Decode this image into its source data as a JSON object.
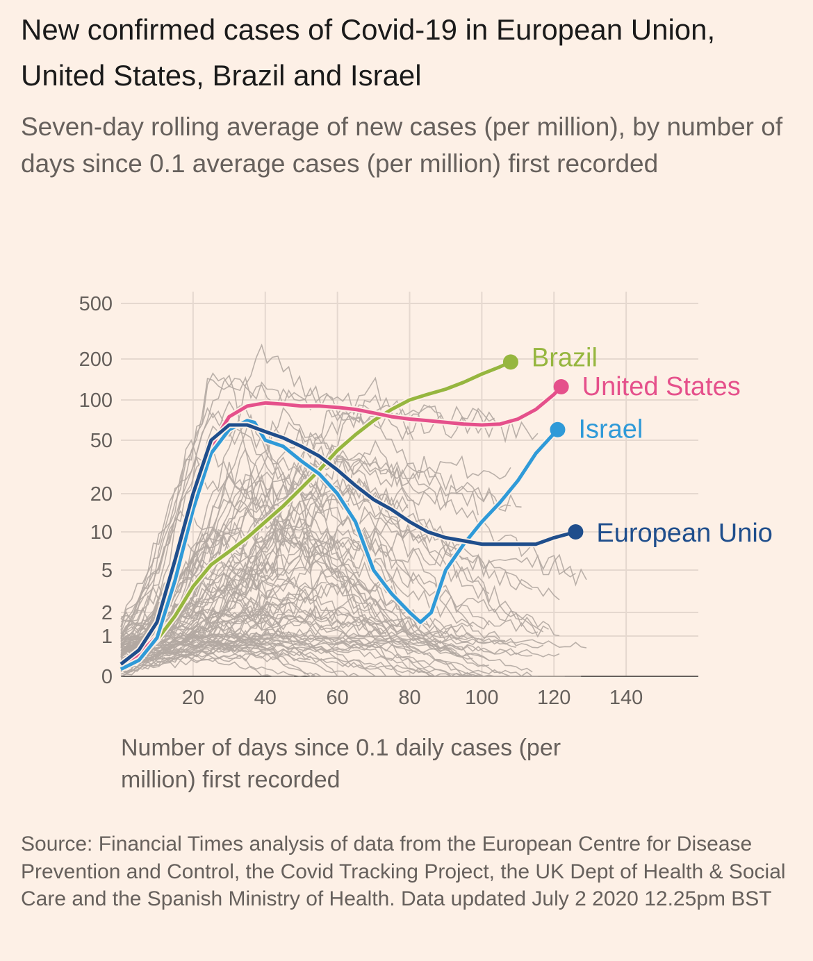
{
  "title": "New confirmed cases of Covid-19 in European Union, United States, Brazil and Israel",
  "subtitle": "Seven-day rolling average of new cases (per million), by number of days since 0.1 average cases (per million) first recorded",
  "source": "Source: Financial Times analysis of data from the European Centre for Disease Prevention and Control, the Covid Tracking Project, the UK Dept of Health & Social Care and the Spanish Ministry of Health. Data updated July 2 2020 12.25pm BST",
  "chart_data": {
    "type": "line",
    "title": "New confirmed cases of Covid-19 in European Union, United States, Brazil and Israel",
    "xlabel": "Number of days since 0.1 daily cases (per million) first recorded",
    "ylabel": "",
    "y_scale": "log",
    "xlim": [
      0,
      160
    ],
    "ylim": [
      0.1,
      700
    ],
    "x_ticks": [
      20,
      40,
      60,
      80,
      100,
      120,
      140
    ],
    "y_ticks": [
      {
        "value": 0.1,
        "label": "0"
      },
      {
        "value": 1,
        "label": "1"
      },
      {
        "value": 2,
        "label": "2"
      },
      {
        "value": 5,
        "label": "5"
      },
      {
        "value": 10,
        "label": "10"
      },
      {
        "value": 20,
        "label": "20"
      },
      {
        "value": 50,
        "label": "50"
      },
      {
        "value": 100,
        "label": "100"
      },
      {
        "value": 200,
        "label": "200"
      },
      {
        "value": 500,
        "label": "500"
      }
    ],
    "grid": true,
    "series": [
      {
        "name": "Brazil",
        "color": "#96b63f",
        "x": [
          0,
          5,
          10,
          15,
          20,
          25,
          30,
          35,
          40,
          45,
          50,
          55,
          60,
          65,
          70,
          75,
          80,
          85,
          90,
          95,
          100,
          105,
          108
        ],
        "y": [
          0.15,
          0.3,
          0.8,
          1.8,
          3.5,
          5.5,
          7,
          9,
          12,
          16,
          22,
          30,
          42,
          55,
          70,
          85,
          100,
          110,
          120,
          135,
          155,
          175,
          190
        ]
      },
      {
        "name": "United States",
        "color": "#e5508b",
        "x": [
          0,
          5,
          10,
          15,
          20,
          25,
          30,
          35,
          40,
          45,
          50,
          55,
          60,
          65,
          70,
          75,
          80,
          85,
          90,
          95,
          100,
          105,
          110,
          115,
          120,
          122
        ],
        "y": [
          0.2,
          0.35,
          1.0,
          4,
          15,
          45,
          75,
          90,
          95,
          93,
          90,
          90,
          88,
          85,
          80,
          75,
          72,
          70,
          68,
          66,
          65,
          66,
          72,
          85,
          110,
          125
        ]
      },
      {
        "name": "Israel",
        "color": "#2f9ad8",
        "x": [
          0,
          5,
          10,
          15,
          20,
          25,
          30,
          35,
          37,
          40,
          45,
          50,
          55,
          60,
          65,
          70,
          75,
          80,
          83,
          86,
          90,
          95,
          100,
          105,
          110,
          115,
          121
        ],
        "y": [
          0.15,
          0.25,
          0.9,
          4,
          15,
          40,
          60,
          70,
          68,
          50,
          45,
          35,
          28,
          20,
          12,
          5,
          3,
          2.0,
          1.5,
          2.0,
          5,
          8,
          12,
          17,
          25,
          40,
          60
        ]
      },
      {
        "name": "European Unio",
        "color": "#1f4e8c",
        "x": [
          0,
          5,
          10,
          15,
          20,
          25,
          30,
          35,
          40,
          45,
          50,
          55,
          60,
          65,
          70,
          75,
          80,
          85,
          90,
          95,
          100,
          105,
          110,
          115,
          120,
          126
        ],
        "y": [
          0.2,
          0.45,
          1.5,
          6,
          20,
          50,
          65,
          65,
          58,
          52,
          45,
          38,
          30,
          23,
          18,
          15,
          12,
          10,
          9,
          8.5,
          8,
          8,
          8,
          8,
          9,
          10
        ]
      }
    ]
  }
}
